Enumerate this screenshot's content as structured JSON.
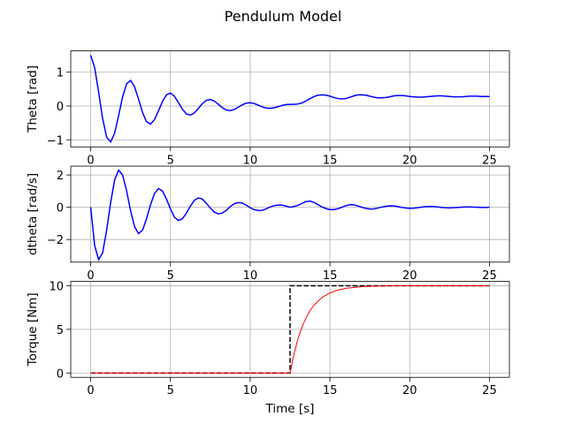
{
  "title": "Pendulum Model",
  "chart_data": [
    {
      "type": "line",
      "ylabel": "Theta [rad]",
      "xlim": [
        -1.25,
        26.25
      ],
      "ylim": [
        -1.21,
        1.63
      ],
      "xticks": [
        0,
        5,
        10,
        15,
        20,
        25
      ],
      "yticks": [
        {
          "value": -1,
          "label": "−1"
        },
        0,
        1
      ],
      "grid": true,
      "series": [
        {
          "color": "#0000ff",
          "linewidth": 1.5,
          "linestyle": "solid",
          "x": [
            0,
            0.25,
            0.5,
            0.75,
            1,
            1.25,
            1.5,
            1.75,
            2,
            2.25,
            2.5,
            2.75,
            3,
            3.25,
            3.5,
            3.75,
            4,
            4.25,
            4.5,
            4.75,
            5,
            5.25,
            5.5,
            5.75,
            6,
            6.25,
            6.5,
            6.75,
            7,
            7.25,
            7.5,
            7.75,
            8,
            8.25,
            8.5,
            8.75,
            9,
            9.25,
            9.5,
            9.75,
            10,
            10.25,
            10.5,
            10.75,
            11,
            11.25,
            11.5,
            11.75,
            12,
            12.25,
            12.5,
            12.75,
            13,
            13.25,
            13.5,
            13.75,
            14,
            14.25,
            14.5,
            14.75,
            15,
            15.25,
            15.5,
            15.75,
            16,
            16.25,
            16.5,
            16.75,
            17,
            17.25,
            17.5,
            17.75,
            18,
            18.25,
            18.5,
            18.75,
            19,
            19.25,
            19.5,
            19.75,
            20,
            20.25,
            20.5,
            20.75,
            21,
            21.25,
            21.5,
            21.75,
            22,
            22.25,
            22.5,
            22.75,
            23,
            23.25,
            23.5,
            23.75,
            24,
            24.25,
            24.5,
            24.75,
            25
          ],
          "values": [
            1.5,
            1.133,
            0.404,
            -0.377,
            -0.922,
            -1.065,
            -0.804,
            -0.287,
            0.268,
            0.655,
            0.756,
            0.571,
            0.204,
            -0.19,
            -0.465,
            -0.537,
            -0.405,
            -0.145,
            0.135,
            0.33,
            0.381,
            0.288,
            0.103,
            -0.096,
            -0.235,
            -0.27,
            -0.205,
            -0.073,
            0.068,
            0.167,
            0.192,
            0.145,
            0.052,
            -0.048,
            -0.118,
            -0.136,
            -0.103,
            -0.037,
            0.034,
            0.084,
            0.097,
            0.073,
            0.026,
            -0.024,
            -0.06,
            -0.069,
            -0.052,
            -0.019,
            0.017,
            0.042,
            0.049,
            0.05,
            0.06,
            0.09,
            0.15,
            0.22,
            0.28,
            0.32,
            0.33,
            0.32,
            0.29,
            0.25,
            0.22,
            0.21,
            0.22,
            0.26,
            0.3,
            0.33,
            0.33,
            0.32,
            0.29,
            0.26,
            0.24,
            0.24,
            0.25,
            0.27,
            0.3,
            0.31,
            0.31,
            0.3,
            0.28,
            0.27,
            0.26,
            0.26,
            0.27,
            0.28,
            0.29,
            0.3,
            0.3,
            0.29,
            0.28,
            0.27,
            0.27,
            0.27,
            0.28,
            0.29,
            0.29,
            0.29,
            0.28,
            0.28,
            0.28
          ]
        }
      ]
    },
    {
      "type": "line",
      "ylabel": "dtheta [rad/s]",
      "xlim": [
        -1.25,
        26.25
      ],
      "ylim": [
        -3.4,
        2.55
      ],
      "xticks": [
        0,
        5,
        10,
        15,
        20,
        25
      ],
      "yticks": [
        {
          "value": -2,
          "label": "−2"
        },
        0,
        2
      ],
      "grid": true,
      "series": [
        {
          "color": "#0000ff",
          "linewidth": 1.5,
          "linestyle": "solid",
          "x": [
            0,
            0.25,
            0.5,
            0.75,
            1,
            1.25,
            1.5,
            1.75,
            2,
            2.25,
            2.5,
            2.75,
            3,
            3.25,
            3.5,
            3.75,
            4,
            4.25,
            4.5,
            4.75,
            5,
            5.25,
            5.5,
            5.75,
            6,
            6.25,
            6.5,
            6.75,
            7,
            7.25,
            7.5,
            7.75,
            8,
            8.25,
            8.5,
            8.75,
            9,
            9.25,
            9.5,
            9.75,
            10,
            10.25,
            10.5,
            10.75,
            11,
            11.25,
            11.5,
            11.75,
            12,
            12.25,
            12.5,
            12.75,
            13,
            13.25,
            13.5,
            13.75,
            14,
            14.25,
            14.5,
            14.75,
            15,
            15.25,
            15.5,
            15.75,
            16,
            16.25,
            16.5,
            16.75,
            17,
            17.25,
            17.5,
            17.75,
            18,
            18.25,
            18.5,
            18.75,
            19,
            19.25,
            19.5,
            19.75,
            20,
            20.25,
            20.5,
            20.75,
            21,
            21.25,
            21.5,
            21.75,
            22,
            22.25,
            22.5,
            22.75,
            23,
            23.25,
            23.5,
            23.75,
            24,
            24.25,
            24.5,
            24.75,
            25
          ],
          "values": [
            0,
            -2.38,
            -3.24,
            -2.82,
            -1.43,
            0.29,
            1.69,
            2.3,
            2.0,
            1.02,
            -0.21,
            -1.2,
            -1.63,
            -1.42,
            -0.72,
            0.15,
            0.85,
            1.16,
            1.01,
            0.51,
            -0.1,
            -0.61,
            -0.82,
            -0.71,
            -0.37,
            0.07,
            0.43,
            0.58,
            0.51,
            0.25,
            -0.05,
            -0.3,
            -0.41,
            -0.36,
            -0.19,
            0.04,
            0.22,
            0.29,
            0.26,
            0.13,
            -0.03,
            -0.15,
            -0.2,
            -0.19,
            -0.1,
            0.02,
            0.1,
            0.14,
            0.13,
            0.07,
            0.0,
            0.05,
            0.12,
            0.24,
            0.35,
            0.38,
            0.3,
            0.16,
            0.02,
            -0.08,
            -0.14,
            -0.14,
            -0.09,
            0.0,
            0.1,
            0.16,
            0.15,
            0.08,
            0.0,
            -0.07,
            -0.11,
            -0.1,
            -0.05,
            0.01,
            0.06,
            0.09,
            0.08,
            0.04,
            -0.01,
            -0.05,
            -0.07,
            -0.06,
            -0.03,
            0.01,
            0.04,
            0.05,
            0.04,
            0.02,
            -0.01,
            -0.03,
            -0.04,
            -0.03,
            -0.01,
            0.01,
            0.02,
            0.02,
            0.01,
            0.0,
            -0.01,
            -0.01,
            0.0
          ]
        }
      ]
    },
    {
      "type": "line",
      "ylabel": "Torque [Nm]",
      "xlabel": "Time [s]",
      "xlim": [
        -1.25,
        26.25
      ],
      "ylim": [
        -0.5,
        10.5
      ],
      "xticks": [
        0,
        5,
        10,
        15,
        20,
        25
      ],
      "yticks": [
        0,
        5,
        10
      ],
      "grid": true,
      "series": [
        {
          "color": "#000000",
          "linewidth": 1.5,
          "linestyle": "dashed",
          "x": [
            0,
            12.5,
            12.5,
            25
          ],
          "values": [
            0,
            0,
            10,
            10
          ]
        },
        {
          "color": "#ff0000",
          "linewidth": 1,
          "linestyle": "solid",
          "x": [
            0,
            12.5,
            12.75,
            13,
            13.25,
            13.5,
            13.75,
            14,
            14.5,
            15,
            15.5,
            16,
            17,
            18,
            19,
            25
          ],
          "values": [
            0,
            0,
            2.21,
            3.93,
            5.28,
            6.32,
            7.13,
            7.77,
            8.65,
            9.18,
            9.5,
            9.7,
            9.89,
            9.96,
            9.99,
            10
          ]
        }
      ]
    }
  ]
}
